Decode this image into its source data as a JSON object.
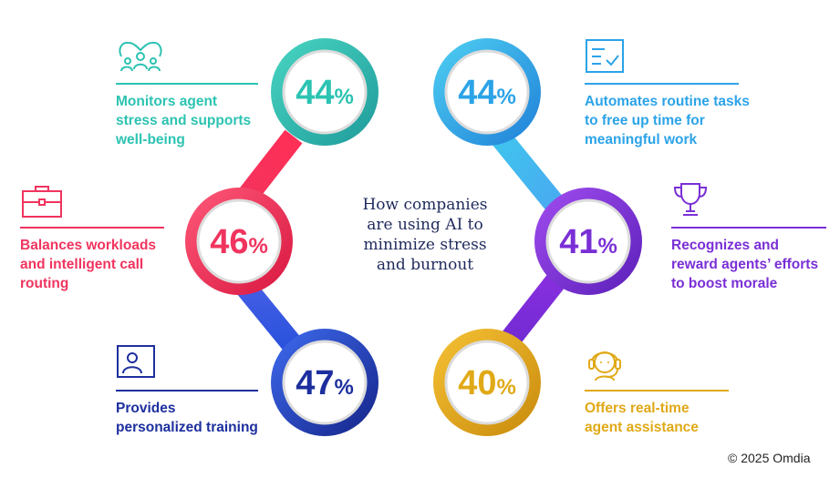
{
  "title": [
    "How companies",
    "are using AI to",
    "minimize stress",
    "and burnout"
  ],
  "colors": {
    "teal": "#2cc3b2",
    "blue": "#2ba3e8",
    "pink": "#f0345e",
    "purple": "#7a2fd6",
    "navy": "#1d2f9e",
    "gold": "#e0a917"
  },
  "items": [
    {
      "value": "44",
      "unit": "%",
      "color": "teal",
      "icon": "wellbeing-people-icon",
      "label": [
        "Monitors agent",
        "stress and supports",
        "well-being"
      ]
    },
    {
      "value": "44",
      "unit": "%",
      "color": "blue",
      "icon": "checklist-icon",
      "label": [
        "Automates routine tasks",
        "to free up time for",
        "meaningful work"
      ]
    },
    {
      "value": "46",
      "unit": "%",
      "color": "pink",
      "icon": "briefcase-icon",
      "label": [
        "Balances workloads",
        "and intelligent call",
        "routing"
      ]
    },
    {
      "value": "41",
      "unit": "%",
      "color": "purple",
      "icon": "trophy-icon",
      "label": [
        "Recognizes and",
        "reward agents’ efforts",
        "to boost morale"
      ]
    },
    {
      "value": "47",
      "unit": "%",
      "color": "navy",
      "icon": "video-trainer-icon",
      "label": [
        "Provides",
        "personalized training"
      ]
    },
    {
      "value": "40",
      "unit": "%",
      "color": "gold",
      "icon": "headset-agent-icon",
      "label": [
        "Offers real-time",
        "agent assistance"
      ]
    }
  ],
  "copyright": "© 2025 Omdia"
}
